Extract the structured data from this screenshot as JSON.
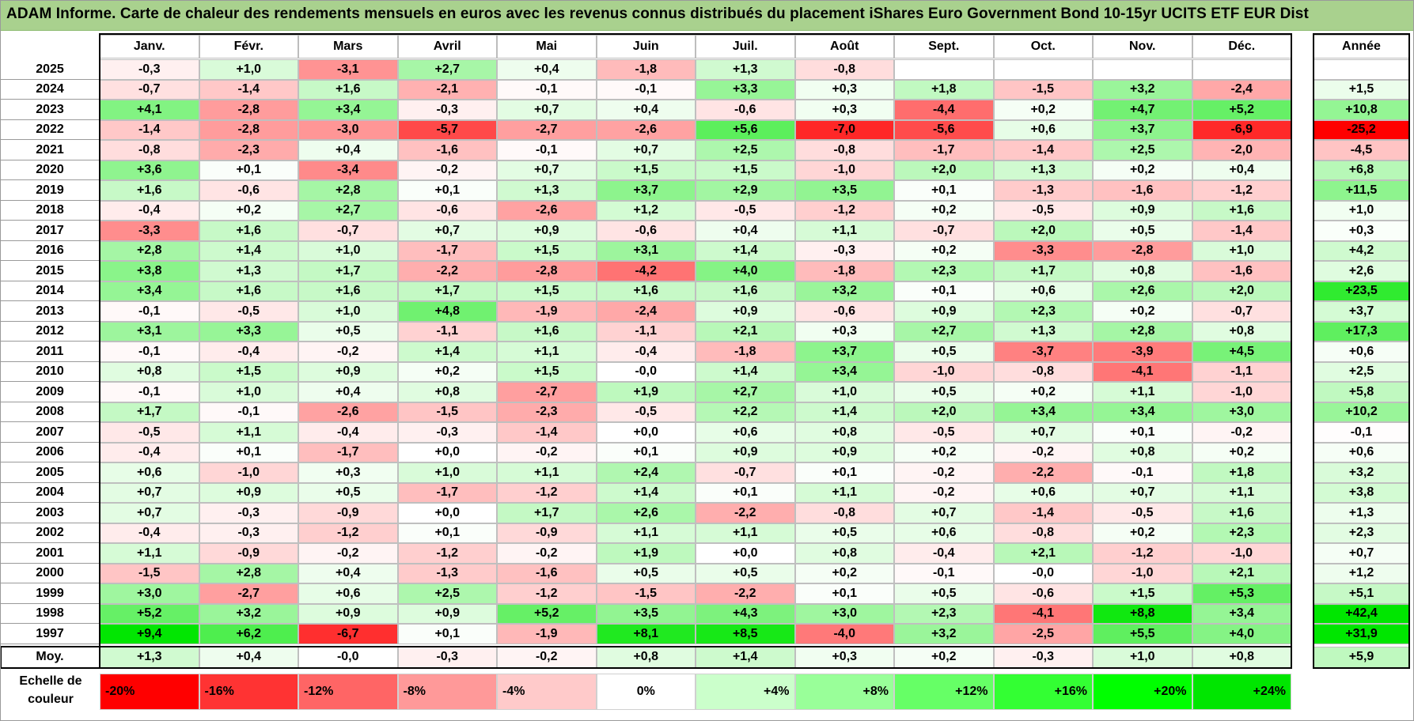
{
  "title": "ADAM Informe. Carte de chaleur des rendements mensuels en euros avec les revenus connus distribués du placement iShares Euro Government Bond 10-15yr UCITS ETF EUR Dist",
  "chart_data": {
    "type": "heatmap",
    "title": "ADAM Informe. Carte de chaleur des rendements mensuels en euros avec les revenus connus distribués du placement iShares Euro Government Bond 10-15yr UCITS ETF EUR Dist",
    "columns": [
      "Janv.",
      "Févr.",
      "Mars",
      "Avril",
      "Mai",
      "Juin",
      "Juil.",
      "Août",
      "Sept.",
      "Oct.",
      "Nov.",
      "Déc."
    ],
    "year_header": "Année",
    "rows": [
      {
        "year": "2025",
        "values": [
          "-0,3",
          "+1,0",
          "-3,1",
          "+2,7",
          "+0,4",
          "-1,8",
          "+1,3",
          "-0,8",
          "",
          "",
          "",
          ""
        ],
        "annual": ""
      },
      {
        "year": "2024",
        "values": [
          "-0,7",
          "-1,4",
          "+1,6",
          "-2,1",
          "-0,1",
          "-0,1",
          "+3,3",
          "+0,3",
          "+1,8",
          "-1,5",
          "+3,2",
          "-2,4"
        ],
        "annual": "+1,5"
      },
      {
        "year": "2023",
        "values": [
          "+4,1",
          "-2,8",
          "+3,4",
          "-0,3",
          "+0,7",
          "+0,4",
          "-0,6",
          "+0,3",
          "-4,4",
          "+0,2",
          "+4,7",
          "+5,2"
        ],
        "annual": "+10,8"
      },
      {
        "year": "2022",
        "values": [
          "-1,4",
          "-2,8",
          "-3,0",
          "-5,7",
          "-2,7",
          "-2,6",
          "+5,6",
          "-7,0",
          "-5,6",
          "+0,6",
          "+3,7",
          "-6,9"
        ],
        "annual": "-25,2"
      },
      {
        "year": "2021",
        "values": [
          "-0,8",
          "-2,3",
          "+0,4",
          "-1,6",
          "-0,1",
          "+0,7",
          "+2,5",
          "-0,8",
          "-1,7",
          "-1,4",
          "+2,5",
          "-2,0"
        ],
        "annual": "-4,5"
      },
      {
        "year": "2020",
        "values": [
          "+3,6",
          "+0,1",
          "-3,4",
          "-0,2",
          "+0,7",
          "+1,5",
          "+1,5",
          "-1,0",
          "+2,0",
          "+1,3",
          "+0,2",
          "+0,4"
        ],
        "annual": "+6,8"
      },
      {
        "year": "2019",
        "values": [
          "+1,6",
          "-0,6",
          "+2,8",
          "+0,1",
          "+1,3",
          "+3,7",
          "+2,9",
          "+3,5",
          "+0,1",
          "-1,3",
          "-1,6",
          "-1,2"
        ],
        "annual": "+11,5"
      },
      {
        "year": "2018",
        "values": [
          "-0,4",
          "+0,2",
          "+2,7",
          "-0,6",
          "-2,6",
          "+1,2",
          "-0,5",
          "-1,2",
          "+0,2",
          "-0,5",
          "+0,9",
          "+1,6"
        ],
        "annual": "+1,0"
      },
      {
        "year": "2017",
        "values": [
          "-3,3",
          "+1,6",
          "-0,7",
          "+0,7",
          "+0,9",
          "-0,6",
          "+0,4",
          "+1,1",
          "-0,7",
          "+2,0",
          "+0,5",
          "-1,4"
        ],
        "annual": "+0,3"
      },
      {
        "year": "2016",
        "values": [
          "+2,8",
          "+1,4",
          "+1,0",
          "-1,7",
          "+1,5",
          "+3,1",
          "+1,4",
          "-0,3",
          "+0,2",
          "-3,3",
          "-2,8",
          "+1,0"
        ],
        "annual": "+4,2"
      },
      {
        "year": "2015",
        "values": [
          "+3,8",
          "+1,3",
          "+1,7",
          "-2,2",
          "-2,8",
          "-4,2",
          "+4,0",
          "-1,8",
          "+2,3",
          "+1,7",
          "+0,8",
          "-1,6"
        ],
        "annual": "+2,6"
      },
      {
        "year": "2014",
        "values": [
          "+3,4",
          "+1,6",
          "+1,6",
          "+1,7",
          "+1,5",
          "+1,6",
          "+1,6",
          "+3,2",
          "+0,1",
          "+0,6",
          "+2,6",
          "+2,0"
        ],
        "annual": "+23,5"
      },
      {
        "year": "2013",
        "values": [
          "-0,1",
          "-0,5",
          "+1,0",
          "+4,8",
          "-1,9",
          "-2,4",
          "+0,9",
          "-0,6",
          "+0,9",
          "+2,3",
          "+0,2",
          "-0,7"
        ],
        "annual": "+3,7"
      },
      {
        "year": "2012",
        "values": [
          "+3,1",
          "+3,3",
          "+0,5",
          "-1,1",
          "+1,6",
          "-1,1",
          "+2,1",
          "+0,3",
          "+2,7",
          "+1,3",
          "+2,8",
          "+0,8"
        ],
        "annual": "+17,3"
      },
      {
        "year": "2011",
        "values": [
          "-0,1",
          "-0,4",
          "-0,2",
          "+1,4",
          "+1,1",
          "-0,4",
          "-1,8",
          "+3,7",
          "+0,5",
          "-3,7",
          "-3,9",
          "+4,5"
        ],
        "annual": "+0,6"
      },
      {
        "year": "2010",
        "values": [
          "+0,8",
          "+1,5",
          "+0,9",
          "+0,2",
          "+1,5",
          "-0,0",
          "+1,4",
          "+3,4",
          "-1,0",
          "-0,8",
          "-4,1",
          "-1,1"
        ],
        "annual": "+2,5"
      },
      {
        "year": "2009",
        "values": [
          "-0,1",
          "+1,0",
          "+0,4",
          "+0,8",
          "-2,7",
          "+1,9",
          "+2,7",
          "+1,0",
          "+0,5",
          "+0,2",
          "+1,1",
          "-1,0"
        ],
        "annual": "+5,8"
      },
      {
        "year": "2008",
        "values": [
          "+1,7",
          "-0,1",
          "-2,6",
          "-1,5",
          "-2,3",
          "-0,5",
          "+2,2",
          "+1,4",
          "+2,0",
          "+3,4",
          "+3,4",
          "+3,0"
        ],
        "annual": "+10,2"
      },
      {
        "year": "2007",
        "values": [
          "-0,5",
          "+1,1",
          "-0,4",
          "-0,3",
          "-1,4",
          "+0,0",
          "+0,6",
          "+0,8",
          "-0,5",
          "+0,7",
          "+0,1",
          "-0,2"
        ],
        "annual": "-0,1"
      },
      {
        "year": "2006",
        "values": [
          "-0,4",
          "+0,1",
          "-1,7",
          "+0,0",
          "-0,2",
          "+0,1",
          "+0,9",
          "+0,9",
          "+0,2",
          "-0,2",
          "+0,8",
          "+0,2"
        ],
        "annual": "+0,6"
      },
      {
        "year": "2005",
        "values": [
          "+0,6",
          "-1,0",
          "+0,3",
          "+1,0",
          "+1,1",
          "+2,4",
          "-0,7",
          "+0,1",
          "-0,2",
          "-2,2",
          "-0,1",
          "+1,8"
        ],
        "annual": "+3,2"
      },
      {
        "year": "2004",
        "values": [
          "+0,7",
          "+0,9",
          "+0,5",
          "-1,7",
          "-1,2",
          "+1,4",
          "+0,1",
          "+1,1",
          "-0,2",
          "+0,6",
          "+0,7",
          "+1,1"
        ],
        "annual": "+3,8"
      },
      {
        "year": "2003",
        "values": [
          "+0,7",
          "-0,3",
          "-0,9",
          "+0,0",
          "+1,7",
          "+2,6",
          "-2,2",
          "-0,8",
          "+0,7",
          "-1,4",
          "-0,5",
          "+1,6"
        ],
        "annual": "+1,3"
      },
      {
        "year": "2002",
        "values": [
          "-0,4",
          "-0,3",
          "-1,2",
          "+0,1",
          "-0,9",
          "+1,1",
          "+1,1",
          "+0,5",
          "+0,6",
          "-0,8",
          "+0,2",
          "+2,3"
        ],
        "annual": "+2,3"
      },
      {
        "year": "2001",
        "values": [
          "+1,1",
          "-0,9",
          "-0,2",
          "-1,2",
          "-0,2",
          "+1,9",
          "+0,0",
          "+0,8",
          "-0,4",
          "+2,1",
          "-1,2",
          "-1,0"
        ],
        "annual": "+0,7"
      },
      {
        "year": "2000",
        "values": [
          "-1,5",
          "+2,8",
          "+0,4",
          "-1,3",
          "-1,6",
          "+0,5",
          "+0,5",
          "+0,2",
          "-0,1",
          "-0,0",
          "-1,0",
          "+2,1"
        ],
        "annual": "+1,2"
      },
      {
        "year": "1999",
        "values": [
          "+3,0",
          "-2,7",
          "+0,6",
          "+2,5",
          "-1,2",
          "-1,5",
          "-2,2",
          "+0,1",
          "+0,5",
          "-0,6",
          "+1,5",
          "+5,3"
        ],
        "annual": "+5,1"
      },
      {
        "year": "1998",
        "values": [
          "+5,2",
          "+3,2",
          "+0,9",
          "+0,9",
          "+5,2",
          "+3,5",
          "+4,3",
          "+3,0",
          "+2,3",
          "-4,1",
          "+8,8",
          "+3,4"
        ],
        "annual": "+42,4"
      },
      {
        "year": "1997",
        "values": [
          "+9,4",
          "+6,2",
          "-6,7",
          "+0,1",
          "-1,9",
          "+8,1",
          "+8,5",
          "-4,0",
          "+3,2",
          "-2,5",
          "+5,5",
          "+4,0"
        ],
        "annual": "+31,9"
      }
    ],
    "average": {
      "label": "Moy.",
      "values": [
        "+1,3",
        "+0,4",
        "-0,0",
        "-0,3",
        "-0,2",
        "+0,8",
        "+1,4",
        "+0,3",
        "+0,2",
        "-0,3",
        "+1,0",
        "+0,8"
      ],
      "annual": "+5,9"
    },
    "color_scale": {
      "label": "Echelle de couleur",
      "stops": [
        "-20%",
        "-16%",
        "-12%",
        "-8%",
        "-4%",
        "0%",
        "+4%",
        "+8%",
        "+12%",
        "+16%",
        "+20%",
        "+24%"
      ],
      "colors": [
        "#ff0000",
        "#ff3333",
        "#ff6565",
        "#ff9999",
        "#ffcaca",
        "#ffffff",
        "#cbffcb",
        "#99ff99",
        "#66ff66",
        "#33ff33",
        "#00ff00",
        "#00e600"
      ]
    }
  }
}
